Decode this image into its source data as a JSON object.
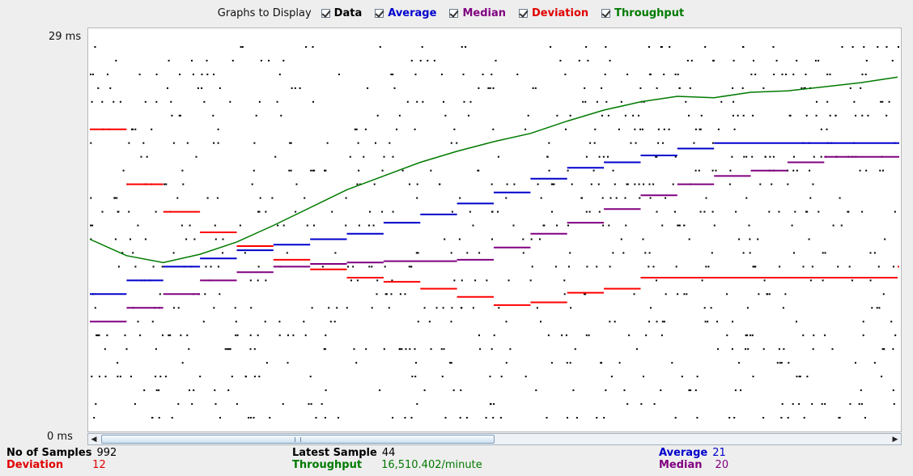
{
  "legend": {
    "title": "Graphs to Display",
    "items": [
      {
        "label": "Data",
        "color": "#000000",
        "checked": true
      },
      {
        "label": "Average",
        "color": "#0000cc",
        "checked": true
      },
      {
        "label": "Median",
        "color": "#800080",
        "checked": true
      },
      {
        "label": "Deviation",
        "color": "#ff0000",
        "checked": true
      },
      {
        "label": "Throughput",
        "color": "#007a00",
        "checked": true
      }
    ]
  },
  "yaxis": {
    "max_label": "29 ms",
    "min_label": "0 ms"
  },
  "stats": {
    "samples_label": "No of Samples",
    "samples_value": "992",
    "latest_label": "Latest Sample",
    "latest_value": "44",
    "average_label": "Average",
    "average_value": "21",
    "deviation_label": "Deviation",
    "deviation_value": "12",
    "throughput_label": "Throughput",
    "throughput_value": "16,510.402/minute",
    "median_label": "Median",
    "median_value": "20"
  },
  "chart_data": {
    "type": "line",
    "ylim": [
      0,
      29
    ],
    "series": [
      {
        "name": "Throughput",
        "color": "#007a00",
        "values": [
          14,
          12.8,
          12.3,
          12.9,
          13.8,
          15.0,
          16.3,
          17.6,
          18.6,
          19.6,
          20.4,
          21.1,
          21.7,
          22.6,
          23.4,
          24.0,
          24.4,
          24.3,
          24.7,
          24.8,
          25.1,
          25.4,
          25.8
        ]
      },
      {
        "name": "Average",
        "color": "#0000cc",
        "values": [
          10,
          11,
          12,
          12.6,
          13.2,
          13.6,
          14.0,
          14.4,
          15.2,
          15.8,
          16.6,
          17.4,
          18.4,
          19.2,
          19.6,
          20.1,
          20.6,
          21.0,
          21.0,
          21.0,
          21.0,
          21.0,
          21.0
        ]
      },
      {
        "name": "Median",
        "color": "#800080",
        "values": [
          8,
          9,
          10,
          11,
          11.6,
          12.0,
          12.2,
          12.3,
          12.4,
          12.4,
          12.5,
          13.4,
          14.4,
          15.2,
          16.2,
          17.2,
          18.0,
          18.6,
          19.0,
          19.6,
          20.0,
          20.0,
          20.0
        ]
      },
      {
        "name": "Deviation",
        "color": "#ff0000",
        "values": [
          22,
          18,
          16,
          14.5,
          13.5,
          12.5,
          11.8,
          11.2,
          10.9,
          10.4,
          9.8,
          9.2,
          9.4,
          10.1,
          10.4,
          11.2,
          11.2,
          11.2,
          11.2,
          11.2,
          11.2,
          11.2,
          12.0
        ]
      }
    ]
  }
}
